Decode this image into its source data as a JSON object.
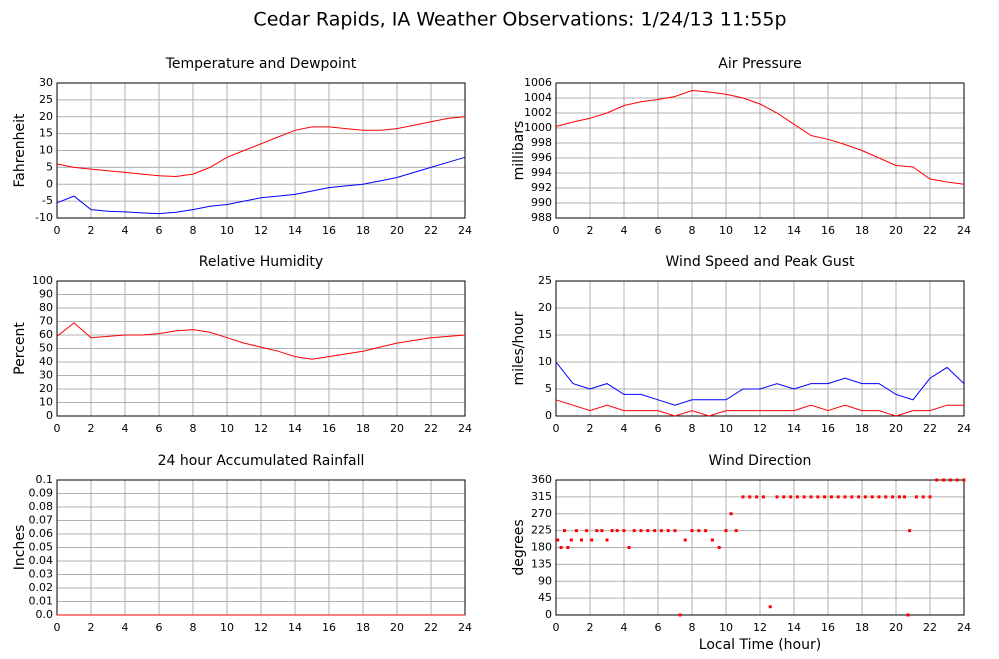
{
  "title": "Cedar Rapids, IA Weather Observations: 1/24/13 11:55p",
  "chart_data": [
    {
      "type": "line",
      "title": "Temperature and Dewpoint",
      "ylabel": "Fahrenheit",
      "x": [
        0,
        1,
        2,
        3,
        4,
        5,
        6,
        7,
        8,
        9,
        10,
        11,
        12,
        13,
        14,
        15,
        16,
        17,
        18,
        19,
        20,
        21,
        22,
        23,
        24
      ],
      "series": [
        {
          "name": "Temperature",
          "color": "#ff0000",
          "values": [
            6,
            5,
            4.5,
            4,
            3.5,
            3,
            2.5,
            2.3,
            3,
            5,
            8,
            10,
            12,
            14,
            16,
            17,
            17,
            16.5,
            16,
            16,
            16.5,
            17.5,
            18.5,
            19.5,
            20
          ]
        },
        {
          "name": "Dewpoint",
          "color": "#0000ff",
          "values": [
            -5.5,
            -3.5,
            -7.5,
            -8,
            -8.2,
            -8.5,
            -8.7,
            -8.3,
            -7.5,
            -6.5,
            -6,
            -5,
            -4,
            -3.5,
            -3,
            -2,
            -1,
            -0.5,
            0,
            1,
            2,
            3.5,
            5,
            6.5,
            8
          ]
        }
      ],
      "xlim": [
        0,
        24
      ],
      "xticks": [
        0,
        2,
        4,
        6,
        8,
        10,
        12,
        14,
        16,
        18,
        20,
        22,
        24
      ],
      "ylim": [
        -10,
        30
      ],
      "yticks": [
        -10,
        -5,
        0,
        5,
        10,
        15,
        20,
        25,
        30
      ],
      "grid": true
    },
    {
      "type": "line",
      "title": "Air Pressure",
      "ylabel": "millibars",
      "x": [
        0,
        1,
        2,
        3,
        4,
        5,
        6,
        7,
        8,
        9,
        10,
        11,
        12,
        13,
        14,
        15,
        16,
        17,
        18,
        19,
        20,
        21,
        22,
        23,
        24
      ],
      "series": [
        {
          "name": "Pressure",
          "color": "#ff0000",
          "values": [
            1000.2,
            1000.8,
            1001.3,
            1002,
            1003,
            1003.5,
            1003.8,
            1004.2,
            1005,
            1004.8,
            1004.5,
            1004,
            1003.2,
            1002,
            1000.5,
            999,
            998.5,
            997.8,
            997,
            996,
            995,
            994.8,
            993.2,
            992.8,
            992.5
          ]
        }
      ],
      "xlim": [
        0,
        24
      ],
      "xticks": [
        0,
        2,
        4,
        6,
        8,
        10,
        12,
        14,
        16,
        18,
        20,
        22,
        24
      ],
      "ylim": [
        988,
        1006
      ],
      "yticks": [
        988,
        990,
        992,
        994,
        996,
        998,
        1000,
        1002,
        1004,
        1006
      ],
      "grid": true
    },
    {
      "type": "line",
      "title": "Relative Humidity",
      "ylabel": "Percent",
      "x": [
        0,
        1,
        2,
        3,
        4,
        5,
        6,
        7,
        8,
        9,
        10,
        11,
        12,
        13,
        14,
        15,
        16,
        17,
        18,
        19,
        20,
        21,
        22,
        23,
        24
      ],
      "series": [
        {
          "name": "Relative Humidity",
          "color": "#ff0000",
          "values": [
            59,
            69,
            58,
            59,
            60,
            60,
            61,
            63,
            64,
            62,
            58,
            54,
            51,
            48,
            44,
            42,
            44,
            46,
            48,
            51,
            54,
            56,
            58,
            59,
            60
          ]
        }
      ],
      "xlim": [
        0,
        24
      ],
      "xticks": [
        0,
        2,
        4,
        6,
        8,
        10,
        12,
        14,
        16,
        18,
        20,
        22,
        24
      ],
      "ylim": [
        0,
        100
      ],
      "yticks": [
        0,
        10,
        20,
        30,
        40,
        50,
        60,
        70,
        80,
        90,
        100
      ],
      "grid": true
    },
    {
      "type": "line",
      "title": "Wind Speed and Peak Gust",
      "ylabel": "miles/hour",
      "x": [
        0,
        1,
        2,
        3,
        4,
        5,
        6,
        7,
        8,
        9,
        10,
        11,
        12,
        13,
        14,
        15,
        16,
        17,
        18,
        19,
        20,
        21,
        22,
        23,
        24
      ],
      "series": [
        {
          "name": "Peak Gust",
          "color": "#0000ff",
          "values": [
            10,
            6,
            5,
            6,
            4,
            4,
            3,
            2,
            3,
            3,
            3,
            5,
            5,
            6,
            5,
            6,
            6,
            7,
            6,
            6,
            4,
            3,
            7,
            9,
            6
          ]
        },
        {
          "name": "Wind Speed",
          "color": "#ff0000",
          "values": [
            3,
            2,
            1,
            2,
            1,
            1,
            1,
            0,
            1,
            0,
            1,
            1,
            1,
            1,
            1,
            2,
            1,
            2,
            1,
            1,
            0,
            1,
            1,
            2,
            2
          ]
        }
      ],
      "xlim": [
        0,
        24
      ],
      "xticks": [
        0,
        2,
        4,
        6,
        8,
        10,
        12,
        14,
        16,
        18,
        20,
        22,
        24
      ],
      "ylim": [
        0,
        25
      ],
      "yticks": [
        0,
        5,
        10,
        15,
        20,
        25
      ],
      "grid": true
    },
    {
      "type": "line",
      "title": "24 hour Accumulated Rainfall",
      "ylabel": "Inches",
      "x": [
        0,
        24
      ],
      "series": [
        {
          "name": "Rainfall",
          "color": "#ff0000",
          "values": [
            0,
            0
          ]
        }
      ],
      "xlim": [
        0,
        24
      ],
      "xticks": [
        0,
        2,
        4,
        6,
        8,
        10,
        12,
        14,
        16,
        18,
        20,
        22,
        24
      ],
      "ylim": [
        0,
        0.1
      ],
      "yticks": [
        {
          "value": 0,
          "label": "0.0"
        },
        0.01,
        0.02,
        0.03,
        0.04,
        0.05,
        0.06,
        0.07,
        0.08,
        0.09,
        0.1
      ],
      "grid": true
    },
    {
      "type": "scatter",
      "title": "Wind Direction",
      "ylabel": "degrees",
      "xlabel": "Local Time (hour)",
      "x": [
        0.1,
        0.3,
        0.5,
        0.7,
        0.9,
        1.2,
        1.5,
        1.8,
        2.1,
        2.4,
        2.7,
        3.0,
        3.3,
        3.6,
        4.0,
        4.3,
        4.6,
        5.0,
        5.4,
        5.8,
        6.2,
        6.6,
        7.0,
        7.3,
        7.6,
        8.0,
        8.4,
        8.8,
        9.2,
        9.6,
        10.0,
        10.3,
        10.6,
        11.0,
        11.4,
        11.8,
        12.2,
        12.6,
        13.0,
        13.4,
        13.8,
        14.2,
        14.6,
        15.0,
        15.4,
        15.8,
        16.2,
        16.6,
        17.0,
        17.4,
        17.8,
        18.2,
        18.6,
        19.0,
        19.4,
        19.8,
        20.2,
        20.5,
        20.7,
        20.8,
        21.2,
        21.6,
        22.0,
        22.4,
        22.8,
        23.2,
        23.6,
        24.0
      ],
      "series": [
        {
          "name": "Wind Direction",
          "color": "#ff0000",
          "values": [
            200,
            180,
            225,
            180,
            200,
            225,
            200,
            225,
            200,
            225,
            225,
            200,
            225,
            225,
            225,
            180,
            225,
            225,
            225,
            225,
            225,
            225,
            225,
            0,
            200,
            225,
            225,
            225,
            200,
            180,
            225,
            270,
            225,
            315,
            315,
            315,
            315,
            22,
            315,
            315,
            315,
            315,
            315,
            315,
            315,
            315,
            315,
            315,
            315,
            315,
            315,
            315,
            315,
            315,
            315,
            315,
            315,
            315,
            0,
            225,
            315,
            315,
            315,
            360,
            360,
            360,
            360,
            360
          ]
        }
      ],
      "xlim": [
        0,
        24
      ],
      "xticks": [
        0,
        2,
        4,
        6,
        8,
        10,
        12,
        14,
        16,
        18,
        20,
        22,
        24
      ],
      "ylim": [
        0,
        360
      ],
      "yticks": [
        0,
        45,
        90,
        135,
        180,
        225,
        270,
        315,
        360
      ],
      "grid": true
    }
  ]
}
